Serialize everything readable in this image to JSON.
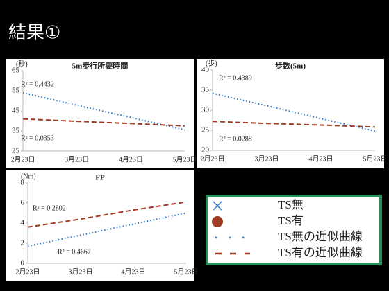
{
  "title": "結果①",
  "chart_data": [
    {
      "type": "line",
      "title": "5m歩行所要時間",
      "y_label": "(秒)",
      "categories": [
        "2月23日",
        "3月23日",
        "4月23日",
        "5月23日"
      ],
      "ylim": [
        25,
        65
      ],
      "yticks": [
        25,
        35,
        45,
        55,
        65
      ],
      "series": [
        {
          "color": "#2e75c8",
          "style": "dotted",
          "values": [
            54,
            47.8,
            41.7,
            35.5
          ],
          "label": "R² = 0.4432"
        },
        {
          "color": "#9e3b22",
          "style": "dashed",
          "values": [
            41,
            39.8,
            38.7,
            37.5
          ],
          "label": "R² = 0.0353"
        }
      ]
    },
    {
      "type": "line",
      "title": "歩数(5m)",
      "y_label": "(歩)",
      "categories": [
        "2月23日",
        "3月23日",
        "4月23日",
        "5月23日"
      ],
      "ylim": [
        20,
        40
      ],
      "yticks": [
        20,
        25,
        30,
        35,
        40
      ],
      "series": [
        {
          "color": "#2e75c8",
          "style": "dotted",
          "values": [
            34.2,
            31.1,
            27.9,
            24.8
          ],
          "label": "R² = 0.4389"
        },
        {
          "color": "#9e3b22",
          "style": "dashed",
          "values": [
            27.2,
            26.7,
            26.3,
            25.8
          ],
          "label": "R² = 0.0288"
        }
      ]
    },
    {
      "type": "line",
      "title": "FP",
      "y_label": "(Nm)",
      "categories": [
        "2月23日",
        "3月23日",
        "4月23日",
        "5月23日"
      ],
      "ylim": [
        0,
        8
      ],
      "yticks": [
        0,
        2,
        4,
        6,
        8
      ],
      "series": [
        {
          "color": "#2e75c8",
          "style": "dotted",
          "values": [
            1.7,
            2.8,
            3.9,
            5.0
          ],
          "label": "R² = 0.4667"
        },
        {
          "color": "#9e3b22",
          "style": "dashed",
          "values": [
            3.6,
            4.4,
            5.3,
            6.1
          ],
          "label": "R² = 0.2802"
        }
      ]
    }
  ],
  "legend": {
    "items": [
      {
        "text": "TS無",
        "marker": "cross",
        "color": "#2e75c8"
      },
      {
        "text": "TS有",
        "marker": "circle",
        "color": "#9e3b22"
      },
      {
        "text": "TS無の近似曲線",
        "marker": "dotted",
        "color": "#2e75c8"
      },
      {
        "text": "TS有の近似曲線",
        "marker": "dashed",
        "color": "#9e3b22"
      }
    ]
  }
}
